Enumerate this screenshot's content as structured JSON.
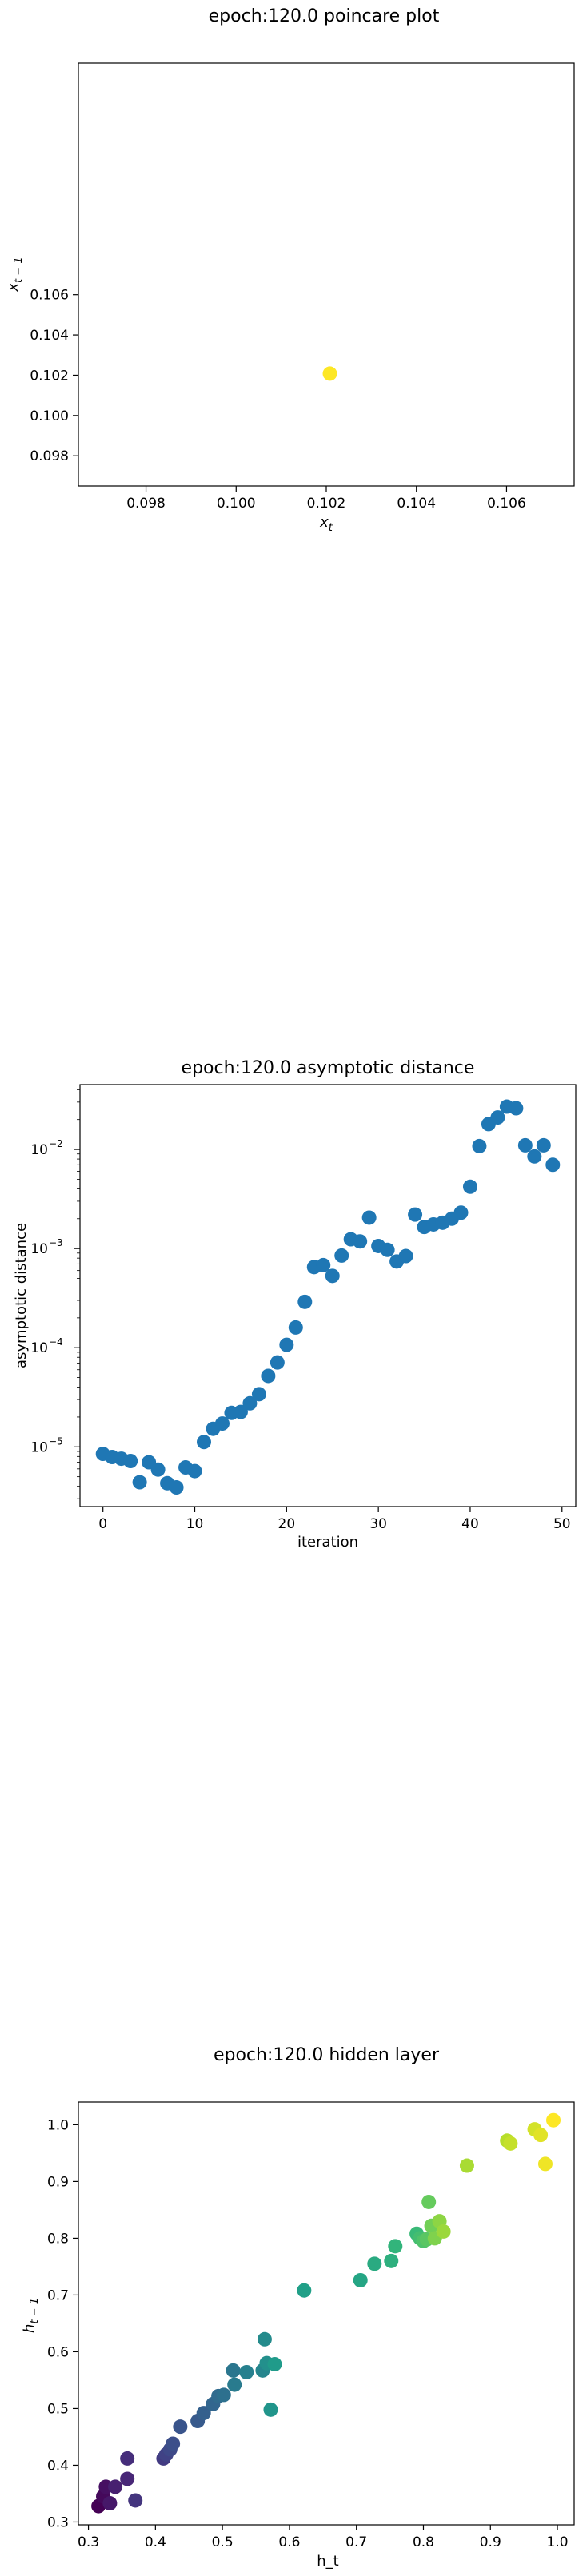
{
  "chart_data": [
    {
      "type": "scatter",
      "title": "epoch:120.0 poincare plot",
      "xlabel": "x",
      "xlabel_sub": "t",
      "ylabel": "x",
      "ylabel_sub": "t − 1",
      "xlim": [
        0.0965,
        0.1075
      ],
      "ylim": [
        0.0965,
        0.1175
      ],
      "xticks": [
        0.098,
        0.1,
        0.102,
        0.104,
        0.106
      ],
      "xtick_labels": [
        "0.098",
        "0.100",
        "0.102",
        "0.104",
        "0.106"
      ],
      "yticks": [
        0.098,
        0.1,
        0.102,
        0.104,
        0.106
      ],
      "ytick_labels": [
        "0.098",
        "0.100",
        "0.102",
        "0.104",
        "0.106"
      ],
      "points": [
        {
          "x": 0.10208,
          "y": 0.10208
        }
      ],
      "point_color": "#fde725",
      "grid": false
    },
    {
      "type": "scatter",
      "title": "epoch:120.0 asymptotic distance",
      "xlabel": "iteration",
      "ylabel": "asymptotic distance",
      "yscale": "log",
      "xlim": [
        -2.5,
        51.5
      ],
      "ylim": [
        2.5e-06,
        0.045
      ],
      "xticks": [
        0,
        10,
        20,
        30,
        40,
        50
      ],
      "xtick_labels": [
        "0",
        "10",
        "20",
        "30",
        "40",
        "50"
      ],
      "yticks": [
        1e-05,
        0.0001,
        0.001,
        0.01
      ],
      "ytick_labels": [
        {
          "base": "10",
          "exp": "−5"
        },
        {
          "base": "10",
          "exp": "−4"
        },
        {
          "base": "10",
          "exp": "−3"
        },
        {
          "base": "10",
          "exp": "−2"
        }
      ],
      "x": [
        0,
        1,
        2,
        3,
        4,
        5,
        6,
        7,
        8,
        9,
        10,
        11,
        12,
        13,
        14,
        15,
        16,
        17,
        18,
        19,
        20,
        21,
        22,
        23,
        24,
        25,
        26,
        27,
        28,
        29,
        30,
        31,
        32,
        33,
        34,
        35,
        36,
        37,
        38,
        39,
        40,
        41,
        42,
        43,
        44,
        45,
        46,
        47,
        48,
        49
      ],
      "values": [
        8.5e-06,
        7.9e-06,
        7.6e-06,
        7.2e-06,
        4.4e-06,
        7e-06,
        5.9e-06,
        4.3e-06,
        3.9e-06,
        6.2e-06,
        5.7e-06,
        1.12e-05,
        1.52e-05,
        1.72e-05,
        2.2e-05,
        2.25e-05,
        2.75e-05,
        3.4e-05,
        5.2e-05,
        7.1e-05,
        0.000107,
        0.00016,
        0.00029,
        0.00065,
        0.00068,
        0.00053,
        0.00085,
        0.00124,
        0.00118,
        0.00205,
        0.00106,
        0.00097,
        0.00074,
        0.00084,
        0.0022,
        0.00165,
        0.00175,
        0.00182,
        0.002,
        0.0023,
        0.0042,
        0.0108,
        0.018,
        0.021,
        0.027,
        0.026,
        0.011,
        0.0085,
        0.011,
        0.007
      ],
      "point_color": "#1f77b4",
      "grid": false
    },
    {
      "type": "scatter",
      "title": "epoch:120.0 hidden layer",
      "xlabel": "h_t",
      "ylabel": "h",
      "ylabel_sub": "t − 1",
      "colormap": "viridis",
      "xlim": [
        0.285,
        1.025
      ],
      "ylim": [
        0.295,
        1.04
      ],
      "xticks": [
        0.3,
        0.4,
        0.5,
        0.6,
        0.7,
        0.8,
        0.9,
        1.0
      ],
      "xtick_labels": [
        "0.3",
        "0.4",
        "0.5",
        "0.6",
        "0.7",
        "0.8",
        "0.9",
        "1.0"
      ],
      "yticks": [
        0.3,
        0.4,
        0.5,
        0.6,
        0.7,
        0.8,
        0.9,
        1.0
      ],
      "ytick_labels": [
        "0.3",
        "0.4",
        "0.5",
        "0.6",
        "0.7",
        "0.8",
        "0.9",
        "1.0"
      ],
      "points": [
        {
          "x": 0.315,
          "y": 0.328
        },
        {
          "x": 0.322,
          "y": 0.345
        },
        {
          "x": 0.326,
          "y": 0.362
        },
        {
          "x": 0.332,
          "y": 0.333
        },
        {
          "x": 0.34,
          "y": 0.362
        },
        {
          "x": 0.358,
          "y": 0.376
        },
        {
          "x": 0.358,
          "y": 0.412
        },
        {
          "x": 0.37,
          "y": 0.338
        },
        {
          "x": 0.412,
          "y": 0.412
        },
        {
          "x": 0.416,
          "y": 0.419
        },
        {
          "x": 0.422,
          "y": 0.428
        },
        {
          "x": 0.426,
          "y": 0.438
        },
        {
          "x": 0.437,
          "y": 0.468
        },
        {
          "x": 0.463,
          "y": 0.478
        },
        {
          "x": 0.472,
          "y": 0.492
        },
        {
          "x": 0.486,
          "y": 0.508
        },
        {
          "x": 0.494,
          "y": 0.522
        },
        {
          "x": 0.502,
          "y": 0.524
        },
        {
          "x": 0.516,
          "y": 0.567
        },
        {
          "x": 0.518,
          "y": 0.542
        },
        {
          "x": 0.536,
          "y": 0.564
        },
        {
          "x": 0.56,
          "y": 0.567
        },
        {
          "x": 0.563,
          "y": 0.622
        },
        {
          "x": 0.566,
          "y": 0.58
        },
        {
          "x": 0.572,
          "y": 0.498
        },
        {
          "x": 0.578,
          "y": 0.578
        },
        {
          "x": 0.622,
          "y": 0.708
        },
        {
          "x": 0.706,
          "y": 0.726
        },
        {
          "x": 0.727,
          "y": 0.755
        },
        {
          "x": 0.752,
          "y": 0.76
        },
        {
          "x": 0.758,
          "y": 0.786
        },
        {
          "x": 0.79,
          "y": 0.808
        },
        {
          "x": 0.795,
          "y": 0.8
        },
        {
          "x": 0.8,
          "y": 0.795
        },
        {
          "x": 0.805,
          "y": 0.798
        },
        {
          "x": 0.808,
          "y": 0.864
        },
        {
          "x": 0.812,
          "y": 0.822
        },
        {
          "x": 0.817,
          "y": 0.8
        },
        {
          "x": 0.824,
          "y": 0.83
        },
        {
          "x": 0.83,
          "y": 0.812
        },
        {
          "x": 0.865,
          "y": 0.928
        },
        {
          "x": 0.925,
          "y": 0.972
        },
        {
          "x": 0.93,
          "y": 0.967
        },
        {
          "x": 0.966,
          "y": 0.992
        },
        {
          "x": 0.975,
          "y": 0.982
        },
        {
          "x": 0.982,
          "y": 0.931
        },
        {
          "x": 0.994,
          "y": 1.008
        }
      ],
      "grid": false
    }
  ]
}
